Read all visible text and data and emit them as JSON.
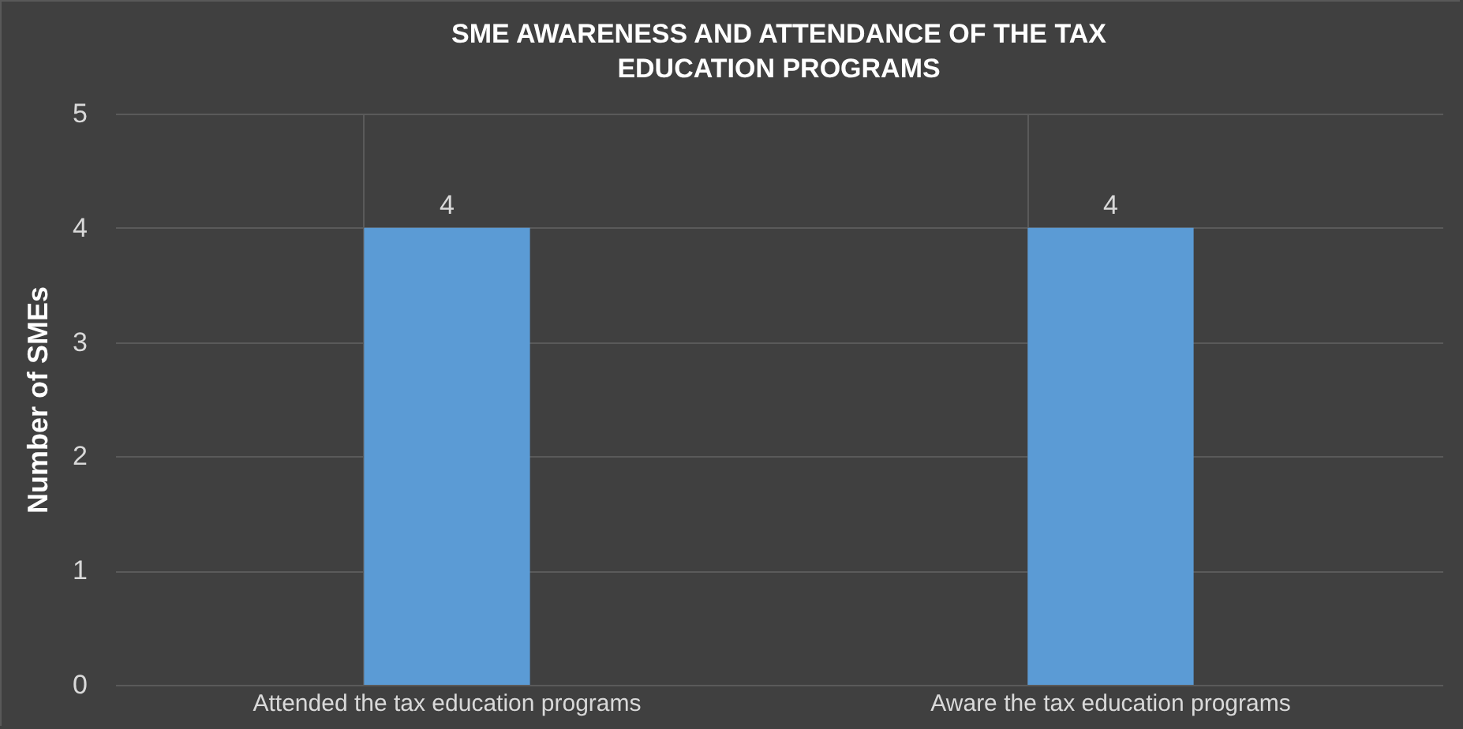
{
  "chart_data": {
    "type": "bar",
    "title": "SME AWARENESS AND ATTENDANCE OF THE TAX EDUCATION PROGRAMS",
    "ylabel": "Number of SMEs",
    "categories": [
      "Attended the tax education programs",
      "Aware the tax education programs"
    ],
    "values": [
      4,
      4
    ],
    "color": "#5b9bd5",
    "ylim": [
      0,
      5
    ],
    "yticks": [
      0,
      1,
      2,
      3,
      4,
      5
    ],
    "grid": true,
    "data_labels": true
  }
}
